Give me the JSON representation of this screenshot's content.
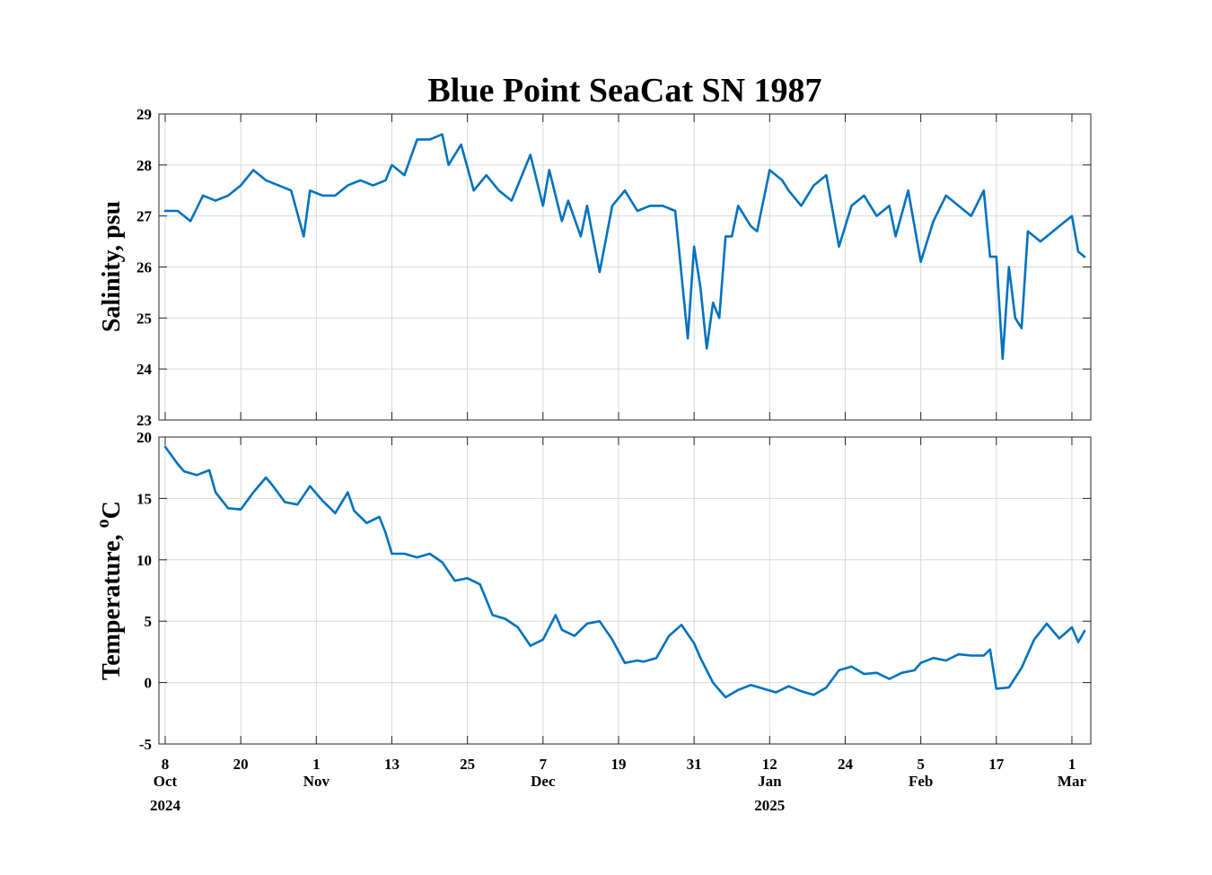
{
  "chart_data": {
    "type": "line",
    "title": "Blue Point SeaCat SN 1987",
    "series_color": "#0072BD",
    "x_ticks": [
      {
        "date": "2024-10-08",
        "day": "8",
        "month": "Oct",
        "year": "2024"
      },
      {
        "date": "2024-10-20",
        "day": "20",
        "month": "",
        "year": ""
      },
      {
        "date": "2024-11-01",
        "day": "1",
        "month": "Nov",
        "year": ""
      },
      {
        "date": "2024-11-13",
        "day": "13",
        "month": "",
        "year": ""
      },
      {
        "date": "2024-11-25",
        "day": "25",
        "month": "",
        "year": ""
      },
      {
        "date": "2024-12-07",
        "day": "7",
        "month": "Dec",
        "year": ""
      },
      {
        "date": "2024-12-19",
        "day": "19",
        "month": "",
        "year": ""
      },
      {
        "date": "2024-12-31",
        "day": "31",
        "month": "",
        "year": ""
      },
      {
        "date": "2025-01-12",
        "day": "12",
        "month": "Jan",
        "year": "2025"
      },
      {
        "date": "2025-01-24",
        "day": "24",
        "month": "",
        "year": ""
      },
      {
        "date": "2025-02-05",
        "day": "5",
        "month": "Feb",
        "year": ""
      },
      {
        "date": "2025-02-17",
        "day": "17",
        "month": "",
        "year": ""
      },
      {
        "date": "2025-03-01",
        "day": "1",
        "month": "Mar",
        "year": ""
      }
    ],
    "xlim": [
      "2024-10-07",
      "2025-03-04"
    ],
    "panels": [
      {
        "ylabel": "Salinity, psu",
        "ylim": [
          23,
          29
        ],
        "yticks": [
          23,
          24,
          25,
          26,
          27,
          28,
          29
        ],
        "grid": true,
        "x": [
          "2024-10-08",
          "2024-10-10",
          "2024-10-12",
          "2024-10-14",
          "2024-10-16",
          "2024-10-18",
          "2024-10-20",
          "2024-10-22",
          "2024-10-24",
          "2024-10-26",
          "2024-10-28",
          "2024-10-30",
          "2024-10-31",
          "2024-11-02",
          "2024-11-04",
          "2024-11-06",
          "2024-11-08",
          "2024-11-10",
          "2024-11-12",
          "2024-11-13",
          "2024-11-15",
          "2024-11-17",
          "2024-11-19",
          "2024-11-21",
          "2024-11-22",
          "2024-11-24",
          "2024-11-26",
          "2024-11-28",
          "2024-11-30",
          "2024-12-02",
          "2024-12-03",
          "2024-12-05",
          "2024-12-07",
          "2024-12-08",
          "2024-12-10",
          "2024-12-11",
          "2024-12-13",
          "2024-12-14",
          "2024-12-16",
          "2024-12-18",
          "2024-12-20",
          "2024-12-22",
          "2024-12-24",
          "2024-12-26",
          "2024-12-28",
          "2024-12-30",
          "2024-12-31",
          "2025-01-01",
          "2025-01-02",
          "2025-01-03",
          "2025-01-04",
          "2025-01-05",
          "2025-01-06",
          "2025-01-07",
          "2025-01-08",
          "2025-01-09",
          "2025-01-10",
          "2025-01-12",
          "2025-01-14",
          "2025-01-15",
          "2025-01-17",
          "2025-01-19",
          "2025-01-21",
          "2025-01-23",
          "2025-01-25",
          "2025-01-27",
          "2025-01-29",
          "2025-01-31",
          "2025-02-01",
          "2025-02-03",
          "2025-02-05",
          "2025-02-07",
          "2025-02-09",
          "2025-02-11",
          "2025-02-13",
          "2025-02-15",
          "2025-02-16",
          "2025-02-17",
          "2025-02-18",
          "2025-02-19",
          "2025-02-20",
          "2025-02-21",
          "2025-02-22",
          "2025-02-24",
          "2025-02-26",
          "2025-02-28",
          "2025-03-01",
          "2025-03-02",
          "2025-03-03"
        ],
        "y": [
          27.1,
          27.1,
          26.9,
          27.4,
          27.3,
          27.4,
          27.6,
          27.9,
          27.7,
          27.6,
          27.5,
          26.6,
          27.5,
          27.4,
          27.4,
          27.6,
          27.7,
          27.6,
          27.7,
          28.0,
          27.8,
          28.5,
          28.5,
          28.6,
          28.0,
          28.4,
          27.5,
          27.8,
          27.5,
          27.3,
          27.6,
          28.2,
          27.2,
          27.9,
          26.9,
          27.3,
          26.6,
          27.2,
          25.9,
          27.2,
          27.5,
          27.1,
          27.2,
          27.2,
          27.1,
          24.6,
          26.4,
          25.6,
          24.4,
          25.3,
          25.0,
          26.6,
          26.6,
          27.2,
          27.0,
          26.8,
          26.7,
          27.9,
          27.7,
          27.5,
          27.2,
          27.6,
          27.8,
          26.4,
          27.2,
          27.4,
          27.0,
          27.2,
          26.6,
          27.5,
          26.1,
          26.9,
          27.4,
          27.2,
          27.0,
          27.5,
          26.2,
          26.2,
          24.2,
          26.0,
          25.0,
          24.8,
          26.7,
          26.5,
          26.7,
          26.9,
          27.0,
          26.3,
          26.2
        ]
      },
      {
        "ylabel": "Temperature, ",
        "ylabel_sup": "o",
        "ylabel_unit": "C",
        "ylim": [
          -5,
          20
        ],
        "yticks": [
          -5,
          0,
          5,
          10,
          15,
          20
        ],
        "grid": true,
        "x": [
          "2024-10-08",
          "2024-10-10",
          "2024-10-11",
          "2024-10-13",
          "2024-10-15",
          "2024-10-16",
          "2024-10-18",
          "2024-10-20",
          "2024-10-22",
          "2024-10-24",
          "2024-10-25",
          "2024-10-27",
          "2024-10-29",
          "2024-10-31",
          "2024-11-02",
          "2024-11-04",
          "2024-11-06",
          "2024-11-07",
          "2024-11-09",
          "2024-11-11",
          "2024-11-12",
          "2024-11-13",
          "2024-11-15",
          "2024-11-17",
          "2024-11-19",
          "2024-11-21",
          "2024-11-23",
          "2024-11-25",
          "2024-11-27",
          "2024-11-29",
          "2024-12-01",
          "2024-12-03",
          "2024-12-05",
          "2024-12-07",
          "2024-12-09",
          "2024-12-10",
          "2024-12-12",
          "2024-12-14",
          "2024-12-16",
          "2024-12-18",
          "2024-12-20",
          "2024-12-22",
          "2024-12-23",
          "2024-12-25",
          "2024-12-27",
          "2024-12-29",
          "2024-12-31",
          "2025-01-01",
          "2025-01-03",
          "2025-01-05",
          "2025-01-07",
          "2025-01-09",
          "2025-01-11",
          "2025-01-13",
          "2025-01-15",
          "2025-01-17",
          "2025-01-19",
          "2025-01-21",
          "2025-01-23",
          "2025-01-25",
          "2025-01-27",
          "2025-01-29",
          "2025-01-31",
          "2025-02-02",
          "2025-02-04",
          "2025-02-05",
          "2025-02-07",
          "2025-02-09",
          "2025-02-11",
          "2025-02-13",
          "2025-02-15",
          "2025-02-16",
          "2025-02-17",
          "2025-02-19",
          "2025-02-21",
          "2025-02-23",
          "2025-02-25",
          "2025-02-27",
          "2025-03-01",
          "2025-03-02",
          "2025-03-03"
        ],
        "y": [
          19.2,
          17.8,
          17.2,
          16.9,
          17.3,
          15.5,
          14.2,
          14.1,
          15.5,
          16.7,
          16.1,
          14.7,
          14.5,
          16.0,
          14.8,
          13.8,
          15.5,
          14.0,
          13.0,
          13.5,
          12.2,
          10.5,
          10.5,
          10.2,
          10.5,
          9.8,
          8.3,
          8.5,
          8.0,
          5.5,
          5.2,
          4.5,
          3.0,
          3.5,
          5.5,
          4.3,
          3.8,
          4.8,
          5.0,
          3.5,
          1.6,
          1.8,
          1.7,
          2.0,
          3.8,
          4.7,
          3.2,
          2.0,
          0.0,
          -1.2,
          -0.6,
          -0.2,
          -0.5,
          -0.8,
          -0.3,
          -0.7,
          -1.0,
          -0.4,
          1.0,
          1.3,
          0.7,
          0.8,
          0.3,
          0.8,
          1.0,
          1.6,
          2.0,
          1.8,
          2.3,
          2.2,
          2.2,
          2.7,
          -0.5,
          -0.4,
          1.2,
          3.5,
          4.8,
          3.6,
          4.5,
          3.3,
          4.2
        ]
      }
    ]
  }
}
